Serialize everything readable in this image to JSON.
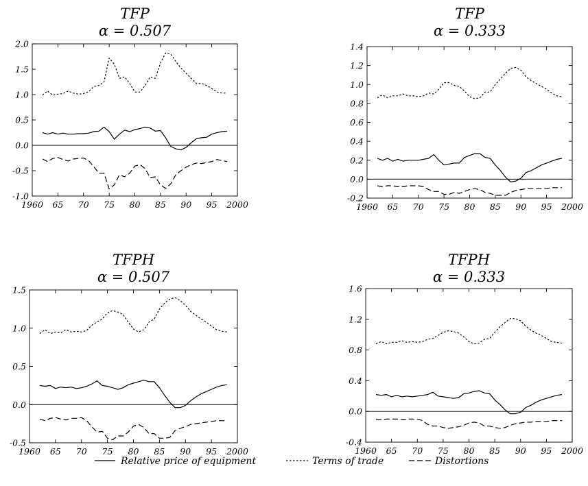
{
  "legend": [
    {
      "label": "Relative price of equipment",
      "style": "solid"
    },
    {
      "label": "Terms of trade",
      "style": "dotted"
    },
    {
      "label": "Distortions",
      "style": "dashed"
    }
  ],
  "chart_data": [
    {
      "type": "line",
      "title": "TFP",
      "subtitle": "α = 0.507",
      "xlim": [
        1960,
        2000
      ],
      "xticks": [
        "1960",
        "65",
        "70",
        "75",
        "80",
        "85",
        "90",
        "95",
        "2000"
      ],
      "xtick_values": [
        1960,
        1965,
        1970,
        1975,
        1980,
        1985,
        1990,
        1995,
        2000
      ],
      "ylim": [
        -1.0,
        2.0
      ],
      "yticks": [
        "2.0",
        "1.5",
        "1.0",
        "0.5",
        "0.0",
        "-0.5",
        "-1.0"
      ],
      "ytick_values": [
        2.0,
        1.5,
        1.0,
        0.5,
        0.0,
        -0.5,
        -1.0
      ],
      "x": [
        1962,
        1963,
        1964,
        1965,
        1966,
        1967,
        1968,
        1969,
        1970,
        1971,
        1972,
        1973,
        1974,
        1975,
        1976,
        1977,
        1978,
        1979,
        1980,
        1981,
        1982,
        1983,
        1984,
        1985,
        1986,
        1987,
        1988,
        1989,
        1990,
        1991,
        1992,
        1993,
        1994,
        1995,
        1996,
        1997,
        1998
      ],
      "series": [
        {
          "name": "Relative price of equipment",
          "style": "solid",
          "values": [
            0.25,
            0.22,
            0.25,
            0.22,
            0.24,
            0.22,
            0.22,
            0.23,
            0.23,
            0.24,
            0.27,
            0.28,
            0.36,
            0.27,
            0.12,
            0.22,
            0.3,
            0.27,
            0.31,
            0.33,
            0.36,
            0.34,
            0.28,
            0.29,
            0.15,
            -0.02,
            -0.07,
            -0.09,
            -0.04,
            0.05,
            0.13,
            0.15,
            0.16,
            0.22,
            0.25,
            0.27,
            0.28
          ]
        },
        {
          "name": "Terms of trade",
          "style": "dotted",
          "values": [
            0.99,
            1.07,
            0.99,
            1.01,
            1.02,
            1.07,
            1.03,
            1.01,
            1.02,
            1.06,
            1.16,
            1.18,
            1.25,
            1.72,
            1.6,
            1.32,
            1.35,
            1.22,
            1.05,
            1.05,
            1.18,
            1.35,
            1.32,
            1.62,
            1.82,
            1.8,
            1.65,
            1.52,
            1.42,
            1.32,
            1.22,
            1.22,
            1.18,
            1.12,
            1.05,
            1.03,
            1.03
          ]
        },
        {
          "name": "Distortions",
          "style": "dashed",
          "values": [
            -0.27,
            -0.32,
            -0.26,
            -0.24,
            -0.28,
            -0.31,
            -0.27,
            -0.26,
            -0.25,
            -0.3,
            -0.42,
            -0.55,
            -0.55,
            -0.86,
            -0.78,
            -0.58,
            -0.62,
            -0.55,
            -0.41,
            -0.38,
            -0.46,
            -0.64,
            -0.62,
            -0.78,
            -0.85,
            -0.76,
            -0.58,
            -0.5,
            -0.43,
            -0.38,
            -0.35,
            -0.36,
            -0.34,
            -0.32,
            -0.28,
            -0.3,
            -0.32
          ]
        }
      ]
    },
    {
      "type": "line",
      "title": "TFP",
      "subtitle": "α = 0.333",
      "xlim": [
        1960,
        2000
      ],
      "xticks": [
        "1960",
        "65",
        "70",
        "75",
        "80",
        "85",
        "90",
        "95",
        "2000"
      ],
      "xtick_values": [
        1960,
        1965,
        1970,
        1975,
        1980,
        1985,
        1990,
        1995,
        2000
      ],
      "ylim": [
        -0.2,
        1.4
      ],
      "yticks": [
        "1.4",
        "1.2",
        "1.0",
        "0.8",
        "0.6",
        "0.4",
        "0.2",
        "0.0",
        "-0.2"
      ],
      "ytick_values": [
        1.4,
        1.2,
        1.0,
        0.8,
        0.6,
        0.4,
        0.2,
        0.0,
        -0.2
      ],
      "x": [
        1962,
        1963,
        1964,
        1965,
        1966,
        1967,
        1968,
        1969,
        1970,
        1971,
        1972,
        1973,
        1974,
        1975,
        1976,
        1977,
        1978,
        1979,
        1980,
        1981,
        1982,
        1983,
        1984,
        1985,
        1986,
        1987,
        1988,
        1989,
        1990,
        1991,
        1992,
        1993,
        1994,
        1995,
        1996,
        1997,
        1998
      ],
      "series": [
        {
          "name": "Relative price of equipment",
          "style": "solid",
          "values": [
            0.22,
            0.2,
            0.22,
            0.19,
            0.21,
            0.19,
            0.2,
            0.2,
            0.2,
            0.21,
            0.22,
            0.26,
            0.2,
            0.15,
            0.16,
            0.17,
            0.17,
            0.23,
            0.25,
            0.27,
            0.27,
            0.23,
            0.22,
            0.15,
            0.09,
            0.02,
            -0.03,
            -0.02,
            0.01,
            0.07,
            0.09,
            0.12,
            0.15,
            0.17,
            0.19,
            0.21,
            0.22
          ]
        },
        {
          "name": "Terms of trade",
          "style": "dotted",
          "values": [
            0.86,
            0.89,
            0.86,
            0.88,
            0.88,
            0.9,
            0.88,
            0.88,
            0.87,
            0.88,
            0.91,
            0.9,
            0.95,
            1.02,
            1.02,
            0.99,
            0.98,
            0.93,
            0.87,
            0.85,
            0.86,
            0.92,
            0.92,
            1.0,
            1.06,
            1.12,
            1.17,
            1.18,
            1.15,
            1.08,
            1.04,
            1.01,
            0.98,
            0.95,
            0.91,
            0.88,
            0.87
          ]
        },
        {
          "name": "Distortions",
          "style": "dashed",
          "values": [
            -0.07,
            -0.08,
            -0.07,
            -0.07,
            -0.08,
            -0.08,
            -0.07,
            -0.07,
            -0.07,
            -0.08,
            -0.11,
            -0.13,
            -0.13,
            -0.16,
            -0.16,
            -0.14,
            -0.15,
            -0.13,
            -0.11,
            -0.1,
            -0.11,
            -0.14,
            -0.15,
            -0.17,
            -0.17,
            -0.17,
            -0.14,
            -0.12,
            -0.11,
            -0.1,
            -0.1,
            -0.1,
            -0.1,
            -0.1,
            -0.09,
            -0.09,
            -0.09
          ]
        }
      ]
    },
    {
      "type": "line",
      "title": "TFPH",
      "subtitle": "α = 0.507",
      "xlim": [
        1960,
        2000
      ],
      "xticks": [
        "1960",
        "65",
        "70",
        "75",
        "80",
        "85",
        "90",
        "95",
        "2000"
      ],
      "xtick_values": [
        1960,
        1965,
        1970,
        1975,
        1980,
        1985,
        1990,
        1995,
        2000
      ],
      "ylim": [
        -0.5,
        1.5
      ],
      "yticks": [
        "1.5",
        "1.0",
        "0.5",
        "0.0",
        "-0.5"
      ],
      "ytick_values": [
        1.5,
        1.0,
        0.5,
        0.0,
        -0.5
      ],
      "x": [
        1962,
        1963,
        1964,
        1965,
        1966,
        1967,
        1968,
        1969,
        1970,
        1971,
        1972,
        1973,
        1974,
        1975,
        1976,
        1977,
        1978,
        1979,
        1980,
        1981,
        1982,
        1983,
        1984,
        1985,
        1986,
        1987,
        1988,
        1989,
        1990,
        1991,
        1992,
        1993,
        1994,
        1995,
        1996,
        1997,
        1998
      ],
      "series": [
        {
          "name": "Relative price of equipment",
          "style": "solid",
          "values": [
            0.25,
            0.24,
            0.25,
            0.21,
            0.23,
            0.22,
            0.23,
            0.21,
            0.22,
            0.24,
            0.27,
            0.31,
            0.25,
            0.24,
            0.22,
            0.2,
            0.22,
            0.26,
            0.28,
            0.3,
            0.32,
            0.3,
            0.3,
            0.22,
            0.12,
            0.03,
            -0.04,
            -0.04,
            -0.01,
            0.05,
            0.1,
            0.14,
            0.17,
            0.2,
            0.23,
            0.25,
            0.26
          ]
        },
        {
          "name": "Terms of trade",
          "style": "dotted",
          "values": [
            0.93,
            0.98,
            0.93,
            0.95,
            0.94,
            0.98,
            0.95,
            0.96,
            0.95,
            0.97,
            1.04,
            1.08,
            1.12,
            1.2,
            1.23,
            1.21,
            1.18,
            1.08,
            0.99,
            0.95,
            0.98,
            1.08,
            1.12,
            1.25,
            1.33,
            1.38,
            1.4,
            1.36,
            1.3,
            1.22,
            1.17,
            1.12,
            1.08,
            1.03,
            0.98,
            0.96,
            0.95
          ]
        },
        {
          "name": "Distortions",
          "style": "dashed",
          "values": [
            -0.19,
            -0.21,
            -0.18,
            -0.17,
            -0.19,
            -0.2,
            -0.18,
            -0.18,
            -0.17,
            -0.21,
            -0.29,
            -0.36,
            -0.35,
            -0.44,
            -0.46,
            -0.41,
            -0.41,
            -0.36,
            -0.28,
            -0.26,
            -0.3,
            -0.38,
            -0.38,
            -0.44,
            -0.44,
            -0.43,
            -0.34,
            -0.31,
            -0.29,
            -0.26,
            -0.25,
            -0.24,
            -0.23,
            -0.22,
            -0.21,
            -0.21,
            -0.21
          ]
        }
      ]
    },
    {
      "type": "line",
      "title": "TFPH",
      "subtitle": "α = 0.333",
      "xlim": [
        1960,
        2000
      ],
      "xticks": [
        "1960",
        "65",
        "70",
        "75",
        "80",
        "85",
        "90",
        "95",
        "2000"
      ],
      "xtick_values": [
        1960,
        1965,
        1970,
        1975,
        1980,
        1985,
        1990,
        1995,
        2000
      ],
      "ylim": [
        -0.4,
        1.6
      ],
      "yticks": [
        "1.6",
        "1.2",
        "0.8",
        "0.4",
        "0.0",
        "-0.4"
      ],
      "ytick_values": [
        1.6,
        1.2,
        0.8,
        0.4,
        0.0,
        -0.4
      ],
      "x": [
        1962,
        1963,
        1964,
        1965,
        1966,
        1967,
        1968,
        1969,
        1970,
        1971,
        1972,
        1973,
        1974,
        1975,
        1976,
        1977,
        1978,
        1979,
        1980,
        1981,
        1982,
        1983,
        1984,
        1985,
        1986,
        1987,
        1988,
        1989,
        1990,
        1991,
        1992,
        1993,
        1994,
        1995,
        1996,
        1997,
        1998
      ],
      "series": [
        {
          "name": "Relative price of equipment",
          "style": "solid",
          "values": [
            0.22,
            0.21,
            0.22,
            0.19,
            0.21,
            0.19,
            0.2,
            0.19,
            0.2,
            0.21,
            0.22,
            0.25,
            0.2,
            0.19,
            0.18,
            0.17,
            0.18,
            0.23,
            0.24,
            0.26,
            0.27,
            0.24,
            0.23,
            0.15,
            0.09,
            0.02,
            -0.03,
            -0.03,
            -0.01,
            0.05,
            0.08,
            0.12,
            0.15,
            0.17,
            0.19,
            0.21,
            0.22
          ]
        },
        {
          "name": "Terms of trade",
          "style": "dotted",
          "values": [
            0.88,
            0.91,
            0.88,
            0.9,
            0.9,
            0.92,
            0.9,
            0.91,
            0.9,
            0.91,
            0.94,
            0.95,
            0.99,
            1.03,
            1.05,
            1.04,
            1.02,
            0.97,
            0.91,
            0.88,
            0.89,
            0.94,
            0.95,
            1.03,
            1.1,
            1.16,
            1.21,
            1.21,
            1.18,
            1.11,
            1.06,
            1.02,
            0.99,
            0.95,
            0.91,
            0.9,
            0.89
          ]
        },
        {
          "name": "Distortions",
          "style": "dashed",
          "values": [
            -0.1,
            -0.11,
            -0.1,
            -0.1,
            -0.1,
            -0.11,
            -0.1,
            -0.1,
            -0.1,
            -0.12,
            -0.17,
            -0.19,
            -0.19,
            -0.21,
            -0.22,
            -0.21,
            -0.2,
            -0.18,
            -0.15,
            -0.14,
            -0.15,
            -0.19,
            -0.19,
            -0.21,
            -0.22,
            -0.21,
            -0.18,
            -0.16,
            -0.15,
            -0.14,
            -0.14,
            -0.13,
            -0.13,
            -0.13,
            -0.12,
            -0.12,
            -0.12
          ]
        }
      ]
    }
  ]
}
